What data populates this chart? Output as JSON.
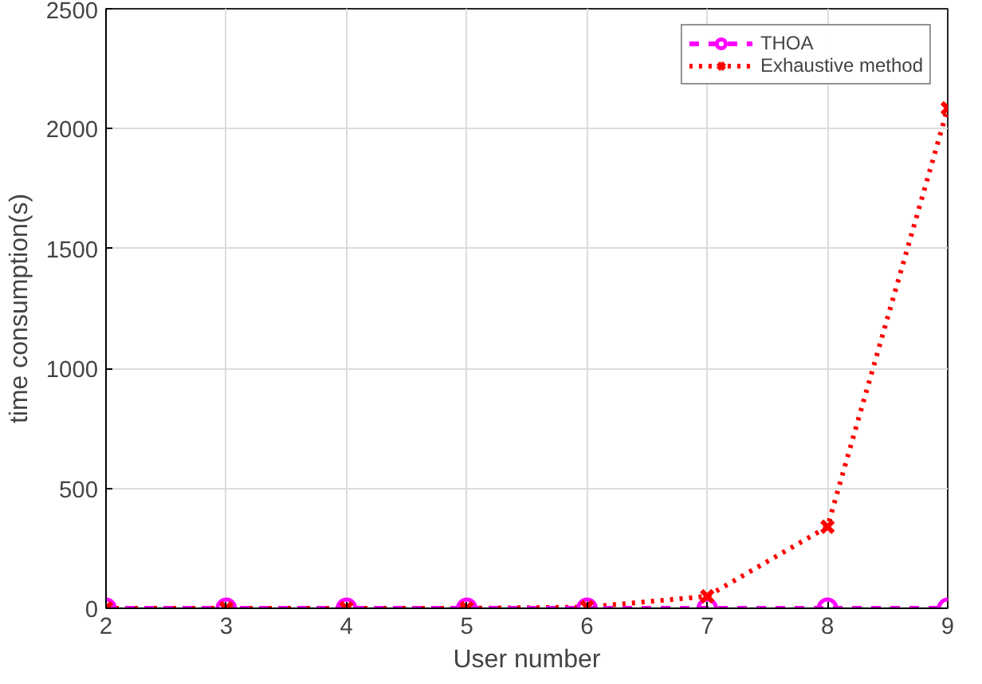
{
  "chart_data": {
    "type": "line",
    "xlabel": "User number",
    "ylabel": "time consumption(s)",
    "x": [
      2,
      3,
      4,
      5,
      6,
      7,
      8,
      9
    ],
    "series": [
      {
        "name": "THOA",
        "color": "#ff00ff",
        "marker": "circle",
        "line_style": "dashed",
        "values": [
          0,
          0,
          0,
          0,
          0,
          0,
          0,
          0
        ]
      },
      {
        "name": "Exhaustive method",
        "color": "#ff0000",
        "marker": "cross",
        "line_style": "dotted",
        "values": [
          0,
          0,
          0,
          0,
          5,
          50,
          340,
          2085
        ]
      }
    ],
    "xlim": [
      2,
      9
    ],
    "ylim": [
      0,
      2500
    ],
    "xticks": [
      2,
      3,
      4,
      5,
      6,
      7,
      8,
      9
    ],
    "yticks": [
      0,
      500,
      1000,
      1500,
      2000,
      2500
    ],
    "grid": true,
    "legend": "top right"
  }
}
